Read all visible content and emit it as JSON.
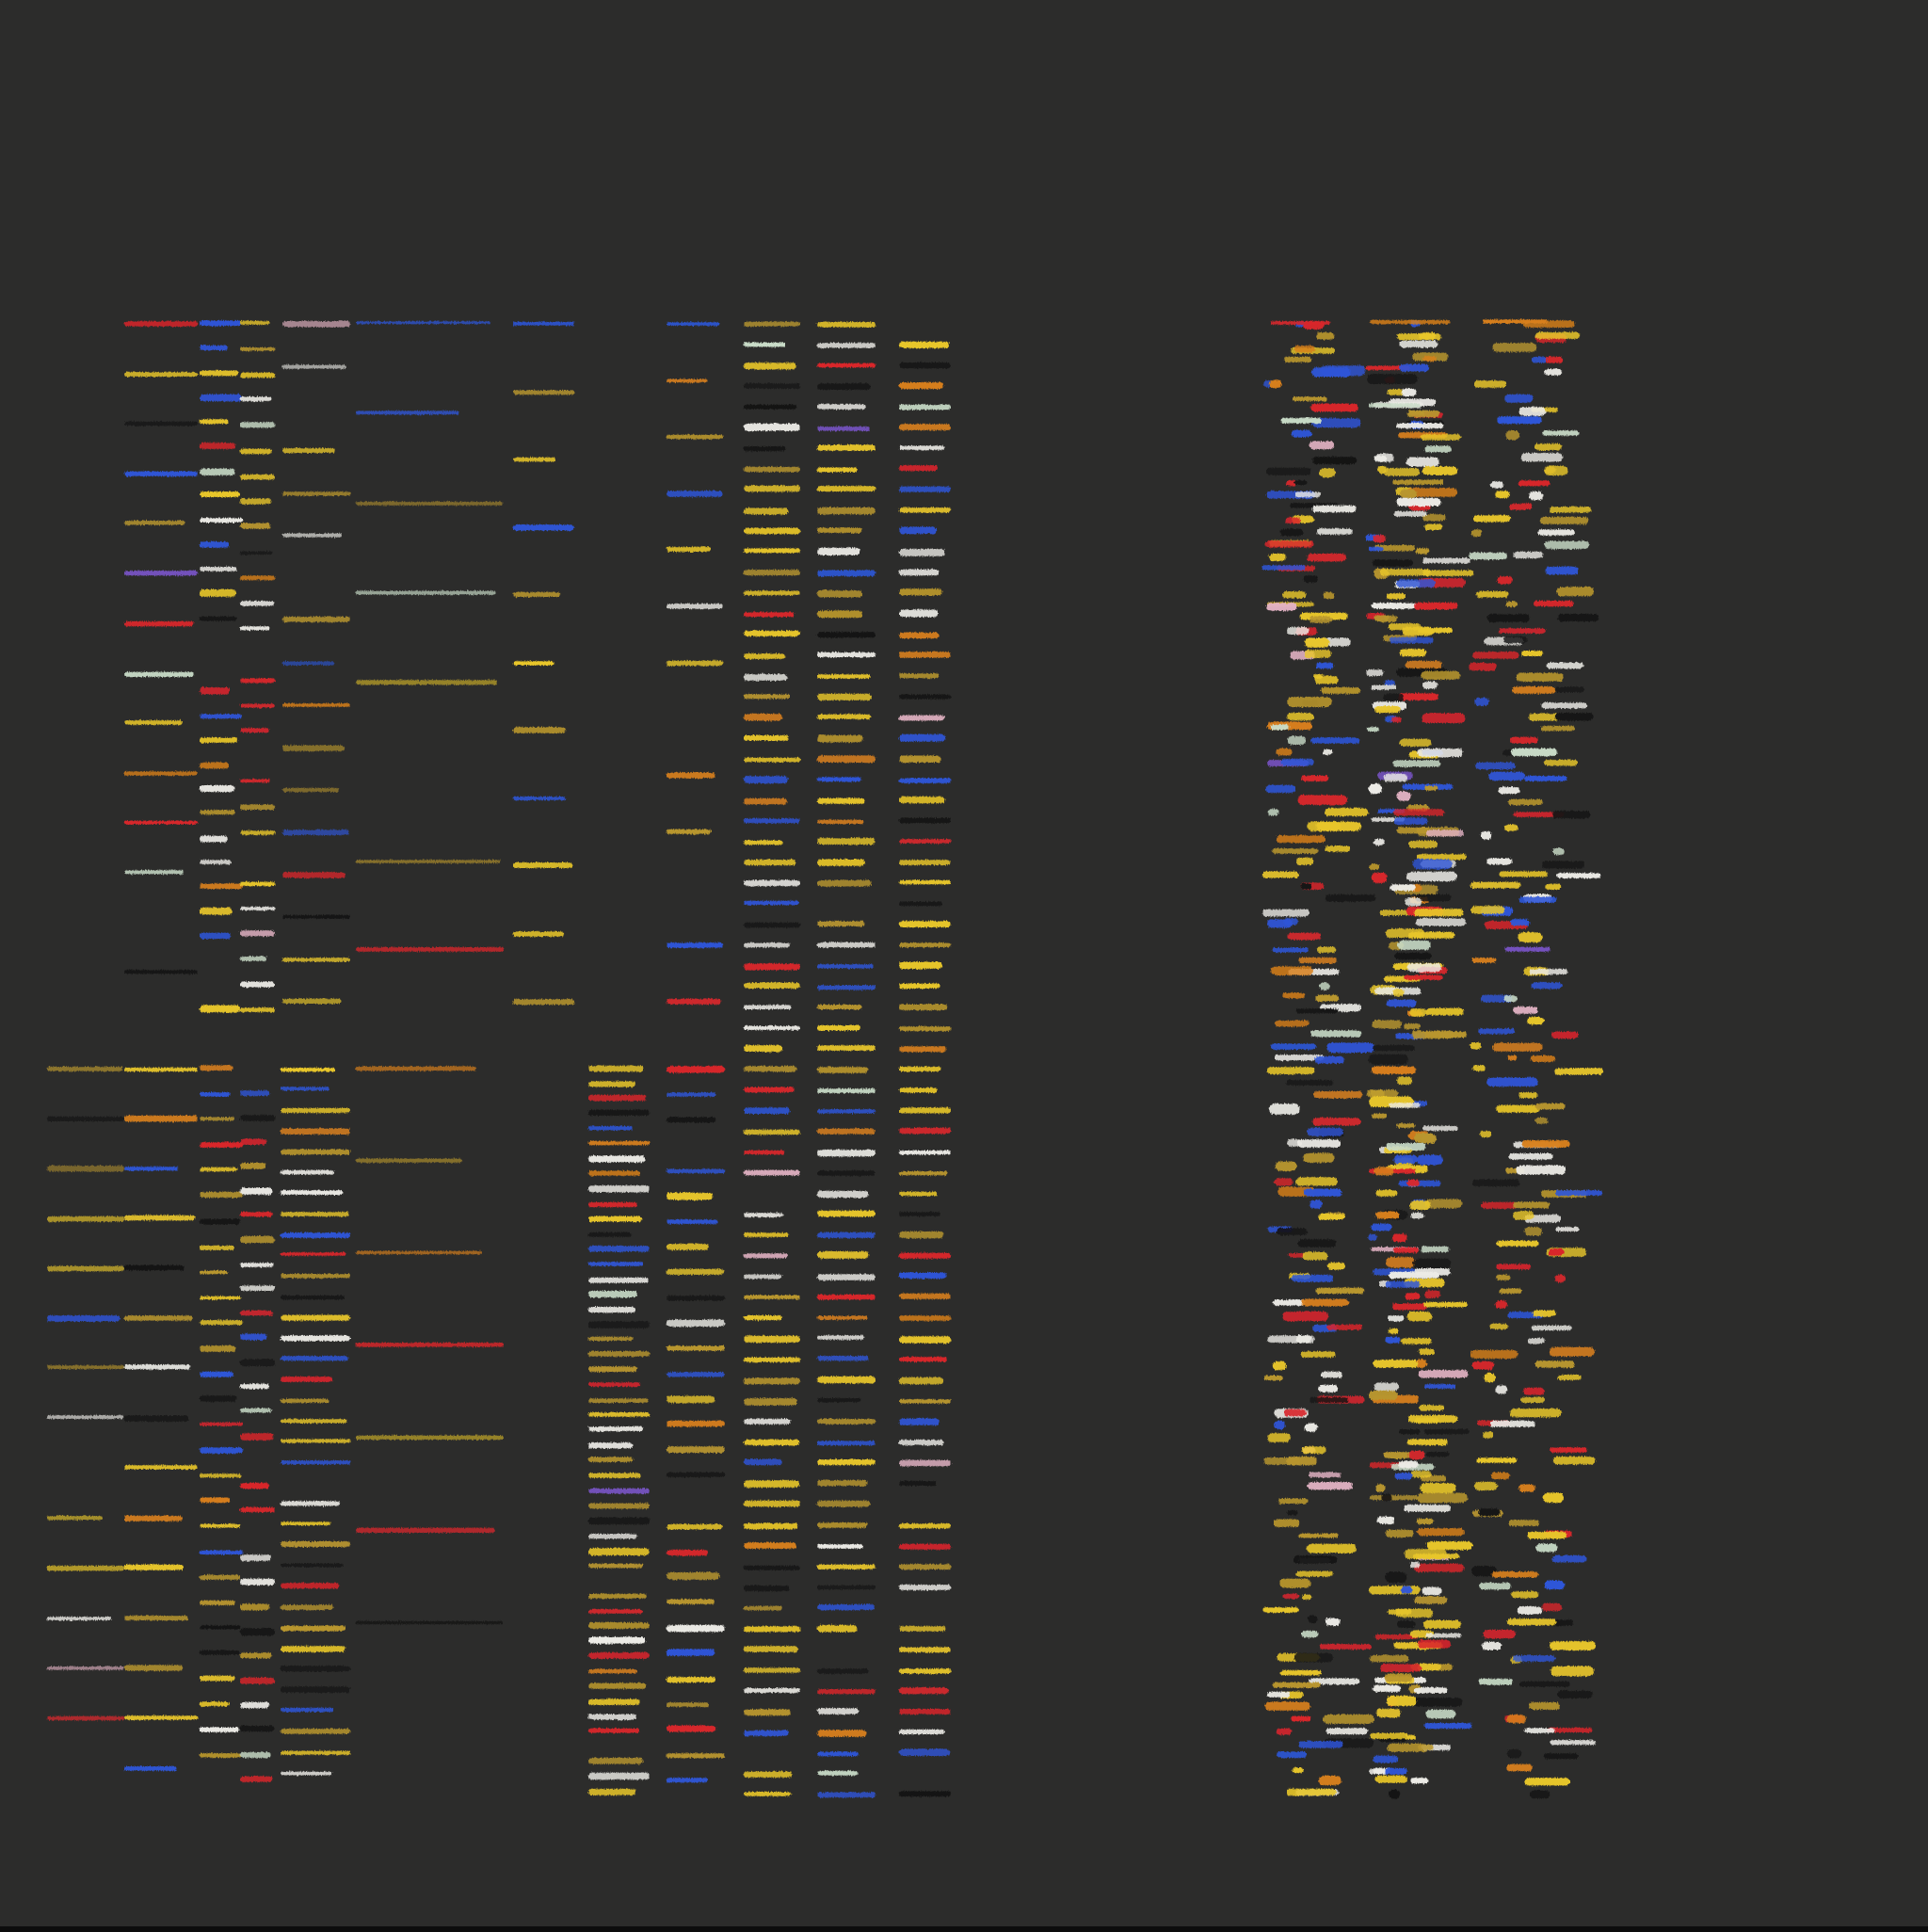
{
  "artwork": {
    "subject": "pastel-dash-grid",
    "background_color": "#2c2c2b",
    "palette": {
      "yellow": "#e8c62a",
      "ochre": "#b8962e",
      "orange": "#d8801c",
      "red": "#d9262c",
      "blue": "#2f56d8",
      "white": "#ecebe6",
      "pale-green": "#c9dcc8",
      "pink": "#e3b3c4",
      "black": "#141414",
      "violet": "#7a54c8"
    }
  }
}
